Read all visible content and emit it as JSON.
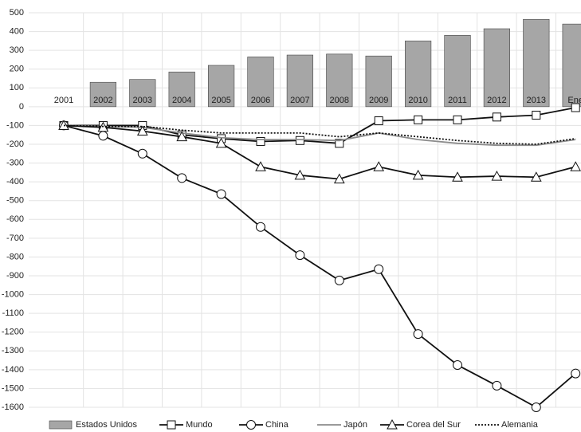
{
  "chart_data": {
    "type": "bar-line",
    "categories": [
      "2001",
      "2002",
      "2003",
      "2004",
      "2005",
      "2006",
      "2007",
      "2008",
      "2009",
      "2010",
      "2011",
      "2012",
      "2013",
      "Ene"
    ],
    "series": [
      {
        "name": "Estados Unidos",
        "type": "bar",
        "color": "#a6a6a6",
        "values": [
          0,
          130,
          145,
          185,
          220,
          265,
          275,
          280,
          270,
          350,
          380,
          415,
          465,
          440
        ]
      },
      {
        "name": "Mundo",
        "type": "line",
        "color": "#111111",
        "marker": "square",
        "dash": "solid",
        "values": [
          -100,
          -100,
          -100,
          -150,
          -170,
          -185,
          -180,
          -195,
          -75,
          -70,
          -70,
          -55,
          -45,
          -5
        ]
      },
      {
        "name": "China",
        "type": "line",
        "color": "#111111",
        "marker": "circle",
        "dash": "solid",
        "values": [
          -100,
          -155,
          -250,
          -380,
          -465,
          -640,
          -790,
          -925,
          -865,
          -1210,
          -1375,
          -1485,
          -1600,
          -1420
        ]
      },
      {
        "name": "Japón",
        "type": "line",
        "color": "#8c8c8c",
        "marker": "none",
        "dash": "solid",
        "values": [
          -100,
          -105,
          -110,
          -140,
          -165,
          -175,
          -175,
          -180,
          -140,
          -175,
          -195,
          -205,
          -205,
          -175
        ]
      },
      {
        "name": "Corea del Sur",
        "type": "line",
        "color": "#111111",
        "marker": "triangle",
        "dash": "solid",
        "values": [
          -100,
          -110,
          -130,
          -160,
          -195,
          -320,
          -365,
          -385,
          -320,
          -365,
          -375,
          -370,
          -375,
          -320
        ]
      },
      {
        "name": "Alemania",
        "type": "line",
        "color": "#111111",
        "marker": "none",
        "dash": "dotted",
        "values": [
          -100,
          -105,
          -105,
          -125,
          -140,
          -140,
          -140,
          -160,
          -140,
          -160,
          -180,
          -195,
          -200,
          -170
        ]
      }
    ],
    "ylim": [
      -1600,
      500
    ],
    "yticks": [
      -1600,
      -1500,
      -1400,
      -1300,
      -1200,
      -1100,
      -1000,
      -900,
      -800,
      -700,
      -600,
      -500,
      -400,
      -300,
      -200,
      -100,
      0,
      100,
      200,
      300,
      400,
      500
    ],
    "grid": true
  }
}
